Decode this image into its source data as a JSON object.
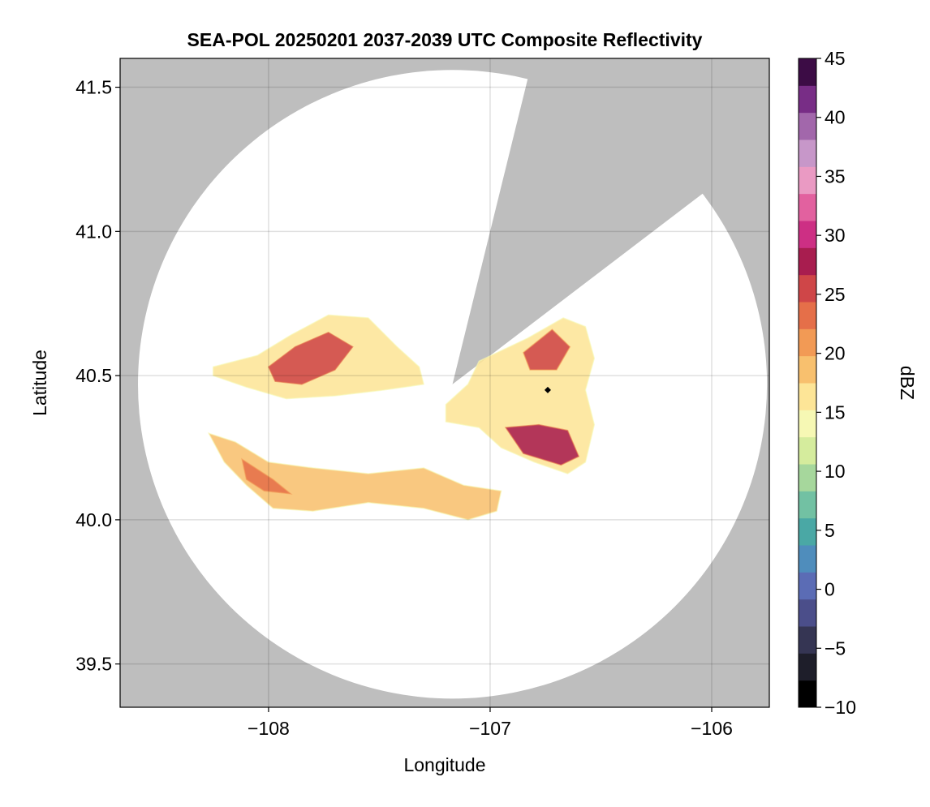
{
  "chart_data": {
    "type": "heatmap",
    "title": "SEA-POL 20250201 2037-2039 UTC Composite Reflectivity",
    "xlabel": "Longitude",
    "ylabel": "Latitude",
    "xlim": [
      -108.67,
      -105.74
    ],
    "ylim": [
      39.35,
      41.6
    ],
    "xticks": [
      -108,
      -107,
      -106
    ],
    "xtick_labels": [
      "−108",
      "−107",
      "−106"
    ],
    "yticks": [
      39.5,
      40.0,
      40.5,
      41.0,
      41.5
    ],
    "ytick_labels": [
      "39.5",
      "40.0",
      "40.5",
      "41.0",
      "41.5"
    ],
    "grid": true,
    "background_color": "#bebebe",
    "coverage_color": "#ffffff",
    "radar": {
      "center_lon": -107.17,
      "center_lat": 40.47,
      "range_radius_lat_deg": 1.09,
      "blocked_sector_ends": [
        {
          "lon": -106.83,
          "lat": 41.53
        },
        {
          "lon": -106.06,
          "lat": 41.12
        }
      ]
    },
    "marker": {
      "lon": -106.74,
      "lat": 40.45,
      "color": "#000000",
      "shape": "diamond"
    },
    "colorbar": {
      "label": "dBZ",
      "min": -10,
      "max": 45,
      "ticks": [
        -10,
        -5,
        0,
        5,
        10,
        15,
        20,
        25,
        30,
        35,
        40,
        45
      ],
      "tick_labels": [
        "−10",
        "−5",
        "0",
        "5",
        "10",
        "15",
        "20",
        "25",
        "30",
        "35",
        "40",
        "45"
      ],
      "colors": [
        "#000000",
        "#1e1e2a",
        "#353553",
        "#4b4e8a",
        "#5b6cb5",
        "#4f8dbc",
        "#4aa8a5",
        "#72c1a3",
        "#a6d79c",
        "#d5ec9d",
        "#f6f8b4",
        "#fde597",
        "#f8c06e",
        "#f29a55",
        "#e56f49",
        "#cf4648",
        "#a81d4f",
        "#cd2f84",
        "#e2619f",
        "#ea9ac3",
        "#c797c9",
        "#a267ab",
        "#782d86",
        "#3c0c45"
      ]
    },
    "echo_regions": [
      {
        "name": "northwest-band",
        "points": [
          [
            -108.25,
            40.53
          ],
          [
            -108.05,
            40.57
          ],
          [
            -107.9,
            40.64
          ],
          [
            -107.73,
            40.71
          ],
          [
            -107.55,
            40.7
          ],
          [
            -107.42,
            40.6
          ],
          [
            -107.32,
            40.53
          ],
          [
            -107.3,
            40.47
          ],
          [
            -107.48,
            40.45
          ],
          [
            -107.7,
            40.43
          ],
          [
            -107.92,
            40.42
          ],
          [
            -108.1,
            40.46
          ],
          [
            -108.25,
            40.5
          ]
        ],
        "value": 17
      },
      {
        "name": "northwest-core",
        "points": [
          [
            -108.0,
            40.53
          ],
          [
            -107.88,
            40.6
          ],
          [
            -107.73,
            40.65
          ],
          [
            -107.62,
            40.6
          ],
          [
            -107.7,
            40.52
          ],
          [
            -107.85,
            40.47
          ],
          [
            -107.97,
            40.48
          ]
        ],
        "value": 26
      },
      {
        "name": "east-cell",
        "points": [
          [
            -107.05,
            40.55
          ],
          [
            -106.83,
            40.63
          ],
          [
            -106.67,
            40.7
          ],
          [
            -106.57,
            40.67
          ],
          [
            -106.53,
            40.56
          ],
          [
            -106.57,
            40.45
          ],
          [
            -106.53,
            40.33
          ],
          [
            -106.57,
            40.2
          ],
          [
            -106.65,
            40.16
          ],
          [
            -106.8,
            40.2
          ],
          [
            -106.95,
            40.25
          ],
          [
            -107.05,
            40.32
          ],
          [
            -107.2,
            40.34
          ],
          [
            -107.2,
            40.4
          ],
          [
            -107.1,
            40.47
          ]
        ],
        "value": 17
      },
      {
        "name": "east-core",
        "points": [
          [
            -106.93,
            40.32
          ],
          [
            -106.78,
            40.33
          ],
          [
            -106.65,
            40.31
          ],
          [
            -106.6,
            40.22
          ],
          [
            -106.68,
            40.19
          ],
          [
            -106.85,
            40.23
          ]
        ],
        "value": 27
      },
      {
        "name": "east-north-core",
        "points": [
          [
            -106.85,
            40.58
          ],
          [
            -106.72,
            40.66
          ],
          [
            -106.64,
            40.6
          ],
          [
            -106.7,
            40.52
          ],
          [
            -106.82,
            40.52
          ]
        ],
        "value": 25
      },
      {
        "name": "south-band",
        "points": [
          [
            -108.27,
            40.3
          ],
          [
            -108.15,
            40.27
          ],
          [
            -108.0,
            40.2
          ],
          [
            -107.8,
            40.18
          ],
          [
            -107.55,
            40.16
          ],
          [
            -107.3,
            40.18
          ],
          [
            -107.12,
            40.12
          ],
          [
            -106.95,
            40.1
          ],
          [
            -106.97,
            40.03
          ],
          [
            -107.1,
            40.0
          ],
          [
            -107.3,
            40.04
          ],
          [
            -107.55,
            40.06
          ],
          [
            -107.8,
            40.03
          ],
          [
            -107.98,
            40.04
          ],
          [
            -108.1,
            40.12
          ],
          [
            -108.2,
            40.2
          ]
        ],
        "value": 18
      },
      {
        "name": "south-core",
        "points": [
          [
            -108.12,
            40.21
          ],
          [
            -107.98,
            40.14
          ],
          [
            -107.9,
            40.09
          ],
          [
            -108.02,
            40.1
          ],
          [
            -108.1,
            40.14
          ]
        ],
        "value": 24
      }
    ]
  }
}
